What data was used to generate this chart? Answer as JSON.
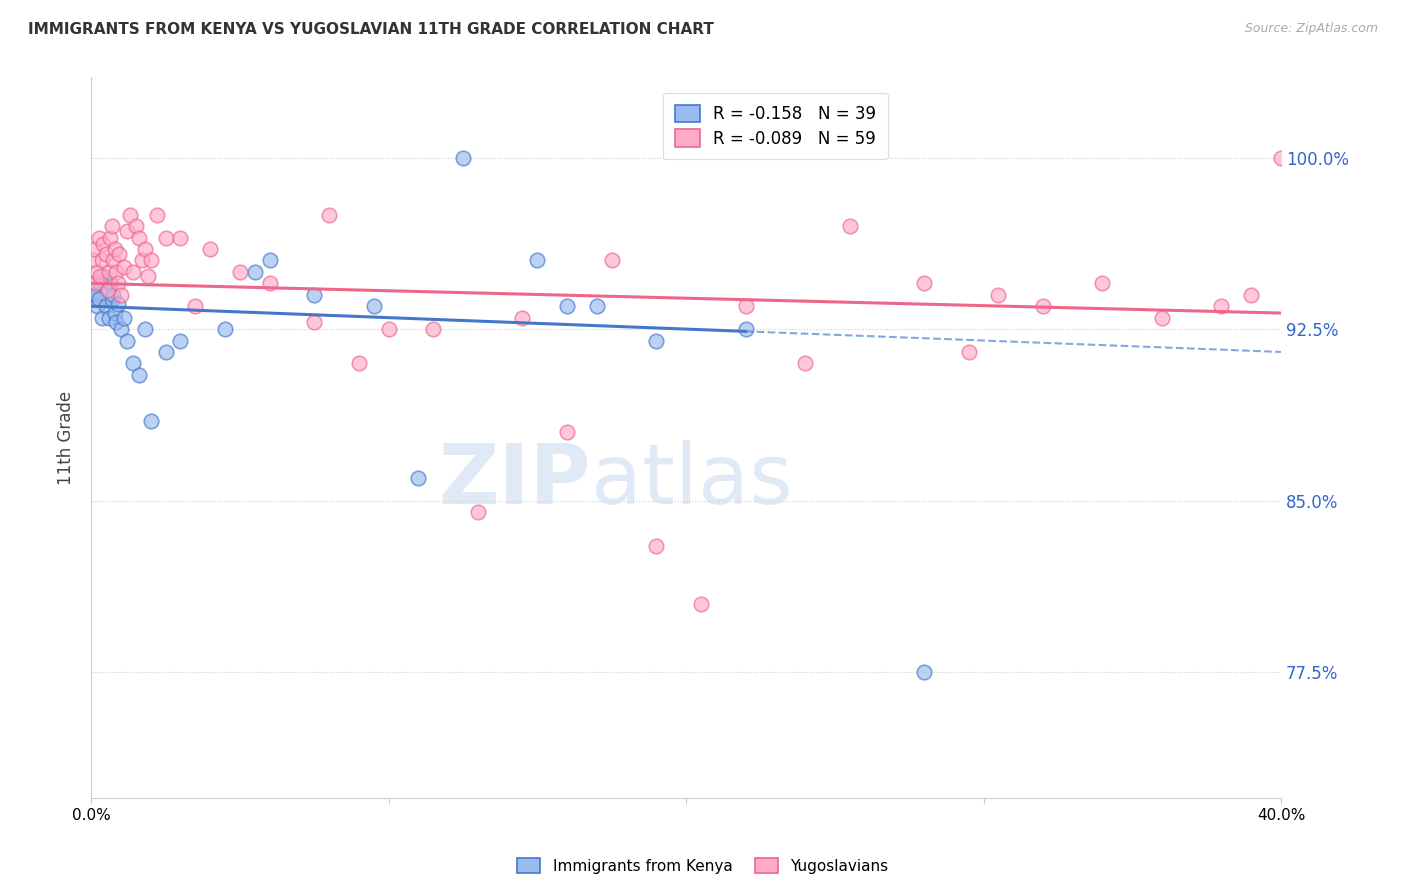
{
  "title": "IMMIGRANTS FROM KENYA VS YUGOSLAVIAN 11TH GRADE CORRELATION CHART",
  "source": "Source: ZipAtlas.com",
  "ylabel": "11th Grade",
  "yticks": [
    77.5,
    85.0,
    92.5,
    100.0
  ],
  "ytick_labels": [
    "77.5%",
    "85.0%",
    "92.5%",
    "100.0%"
  ],
  "xlim": [
    0.0,
    40.0
  ],
  "ylim": [
    72.0,
    103.5
  ],
  "kenya_R": -0.158,
  "kenya_N": 39,
  "yugo_R": -0.089,
  "yugo_N": 59,
  "kenya_color": "#99BBEE",
  "yugo_color": "#FFAACC",
  "kenya_trend_color": "#4477CC",
  "yugo_trend_color": "#EE6688",
  "background_color": "#FFFFFF",
  "kenya_x": [
    0.05,
    0.1,
    0.15,
    0.2,
    0.25,
    0.3,
    0.35,
    0.4,
    0.5,
    0.55,
    0.6,
    0.65,
    0.7,
    0.75,
    0.8,
    0.85,
    0.9,
    1.0,
    1.1,
    1.2,
    1.4,
    1.6,
    1.8,
    2.0,
    2.5,
    3.0,
    4.5,
    6.0,
    7.5,
    9.5,
    11.0,
    12.5,
    15.0,
    17.0,
    19.0,
    22.0,
    28.0,
    16.0,
    5.5
  ],
  "kenya_y": [
    94.2,
    93.8,
    94.0,
    93.5,
    93.8,
    94.5,
    93.0,
    94.8,
    93.5,
    94.2,
    93.0,
    94.5,
    93.8,
    94.0,
    93.2,
    92.8,
    93.6,
    92.5,
    93.0,
    92.0,
    91.0,
    90.5,
    92.5,
    88.5,
    91.5,
    92.0,
    92.5,
    95.5,
    94.0,
    93.5,
    86.0,
    100.0,
    95.5,
    93.5,
    92.0,
    92.5,
    77.5,
    93.5,
    95.0
  ],
  "yugo_x": [
    0.05,
    0.1,
    0.15,
    0.2,
    0.25,
    0.3,
    0.35,
    0.4,
    0.5,
    0.55,
    0.6,
    0.65,
    0.7,
    0.75,
    0.8,
    0.85,
    0.9,
    0.95,
    1.0,
    1.1,
    1.2,
    1.3,
    1.4,
    1.5,
    1.6,
    1.7,
    1.8,
    1.9,
    2.0,
    2.2,
    2.5,
    3.0,
    3.5,
    4.0,
    5.0,
    6.0,
    7.5,
    9.0,
    10.0,
    11.5,
    13.0,
    14.5,
    16.0,
    17.5,
    19.0,
    20.5,
    22.0,
    24.0,
    25.5,
    28.0,
    29.5,
    30.5,
    32.0,
    34.0,
    36.0,
    38.0,
    39.0,
    40.0,
    8.0
  ],
  "yugo_y": [
    95.5,
    96.0,
    94.5,
    95.0,
    96.5,
    94.8,
    95.5,
    96.2,
    95.8,
    94.2,
    95.0,
    96.5,
    97.0,
    95.5,
    96.0,
    95.0,
    94.5,
    95.8,
    94.0,
    95.2,
    96.8,
    97.5,
    95.0,
    97.0,
    96.5,
    95.5,
    96.0,
    94.8,
    95.5,
    97.5,
    96.5,
    96.5,
    93.5,
    96.0,
    95.0,
    94.5,
    92.8,
    91.0,
    92.5,
    92.5,
    84.5,
    93.0,
    88.0,
    95.5,
    83.0,
    80.5,
    93.5,
    91.0,
    97.0,
    94.5,
    91.5,
    94.0,
    93.5,
    94.5,
    93.0,
    93.5,
    94.0,
    100.0,
    97.5
  ]
}
